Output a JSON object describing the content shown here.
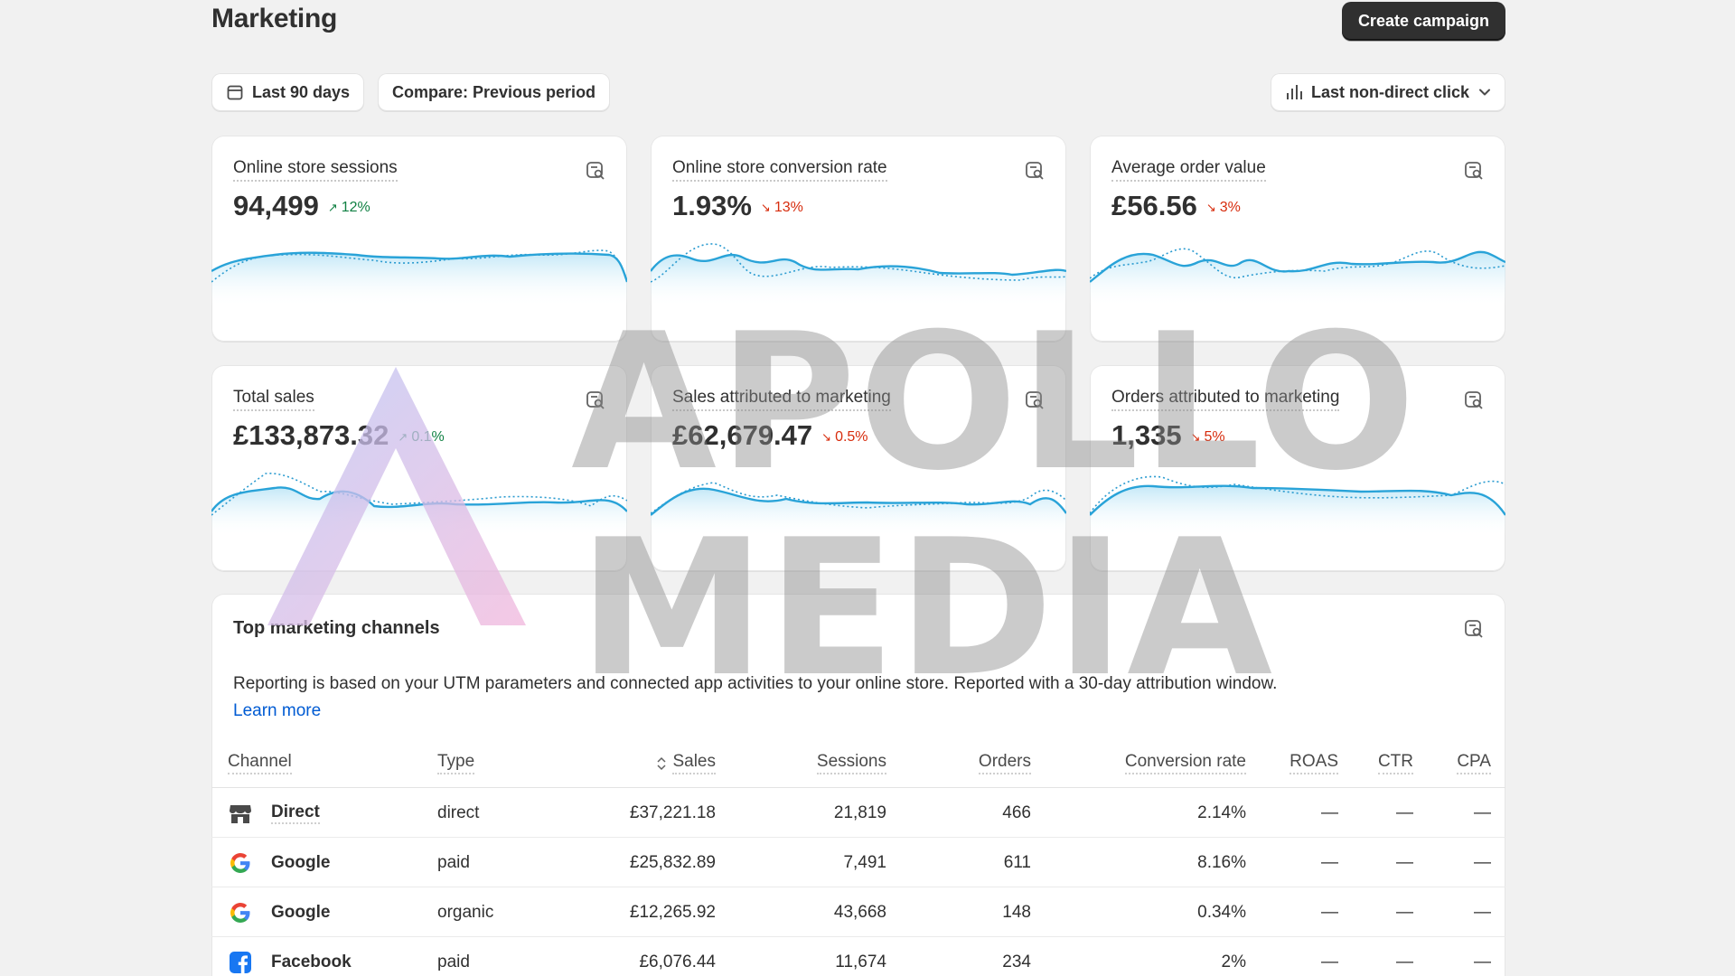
{
  "header": {
    "title": "Marketing",
    "create_label": "Create campaign"
  },
  "filters": {
    "date_label": "Last 90 days",
    "compare_label": "Compare: Previous period",
    "attribution_label": "Last non-direct click"
  },
  "metrics": [
    {
      "label": "Online store sessions",
      "value": "94,499",
      "delta": "12%",
      "direction": "up"
    },
    {
      "label": "Online store conversion rate",
      "value": "1.93%",
      "delta": "13%",
      "direction": "down"
    },
    {
      "label": "Average order value",
      "value": "£56.56",
      "delta": "3%",
      "direction": "down"
    },
    {
      "label": "Total sales",
      "value": "£133,873.32",
      "delta": "0.1%",
      "direction": "up"
    },
    {
      "label": "Sales attributed to marketing",
      "value": "£62,679.47",
      "delta": "0.5%",
      "direction": "down"
    },
    {
      "label": "Orders attributed to marketing",
      "value": "1,335",
      "delta": "5%",
      "direction": "down"
    }
  ],
  "channels": {
    "title": "Top marketing channels",
    "description": "Reporting is based on your UTM parameters and connected app activities to your online store. Reported with a 30-day attribution window.",
    "learn_more": "Learn more",
    "columns": {
      "channel": "Channel",
      "type": "Type",
      "sales": "Sales",
      "sessions": "Sessions",
      "orders": "Orders",
      "conversion": "Conversion rate",
      "roas": "ROAS",
      "ctr": "CTR",
      "cpa": "CPA"
    },
    "rows": [
      {
        "icon": "store-icon",
        "channel": "Direct",
        "type": "direct",
        "sales": "£37,221.18",
        "sessions": "21,819",
        "orders": "466",
        "conversion": "2.14%",
        "roas": "—",
        "ctr": "—",
        "cpa": "—"
      },
      {
        "icon": "google-icon",
        "channel": "Google",
        "type": "paid",
        "sales": "£25,832.89",
        "sessions": "7,491",
        "orders": "611",
        "conversion": "8.16%",
        "roas": "—",
        "ctr": "—",
        "cpa": "—"
      },
      {
        "icon": "google-icon",
        "channel": "Google",
        "type": "organic",
        "sales": "£12,265.92",
        "sessions": "43,668",
        "orders": "148",
        "conversion": "0.34%",
        "roas": "—",
        "ctr": "—",
        "cpa": "—"
      },
      {
        "icon": "facebook-icon",
        "channel": "Facebook",
        "type": "paid",
        "sales": "£6,076.44",
        "sessions": "11,674",
        "orders": "234",
        "conversion": "2%",
        "roas": "—",
        "ctr": "—",
        "cpa": "—"
      }
    ]
  },
  "watermark": {
    "line1": "APOLLO",
    "line2": "MEDIA"
  },
  "colors": {
    "primary_button": "#303030",
    "sparkline": "#29a3d8",
    "positive": "#108043",
    "negative": "#d72c0d",
    "link": "#005bd3"
  }
}
